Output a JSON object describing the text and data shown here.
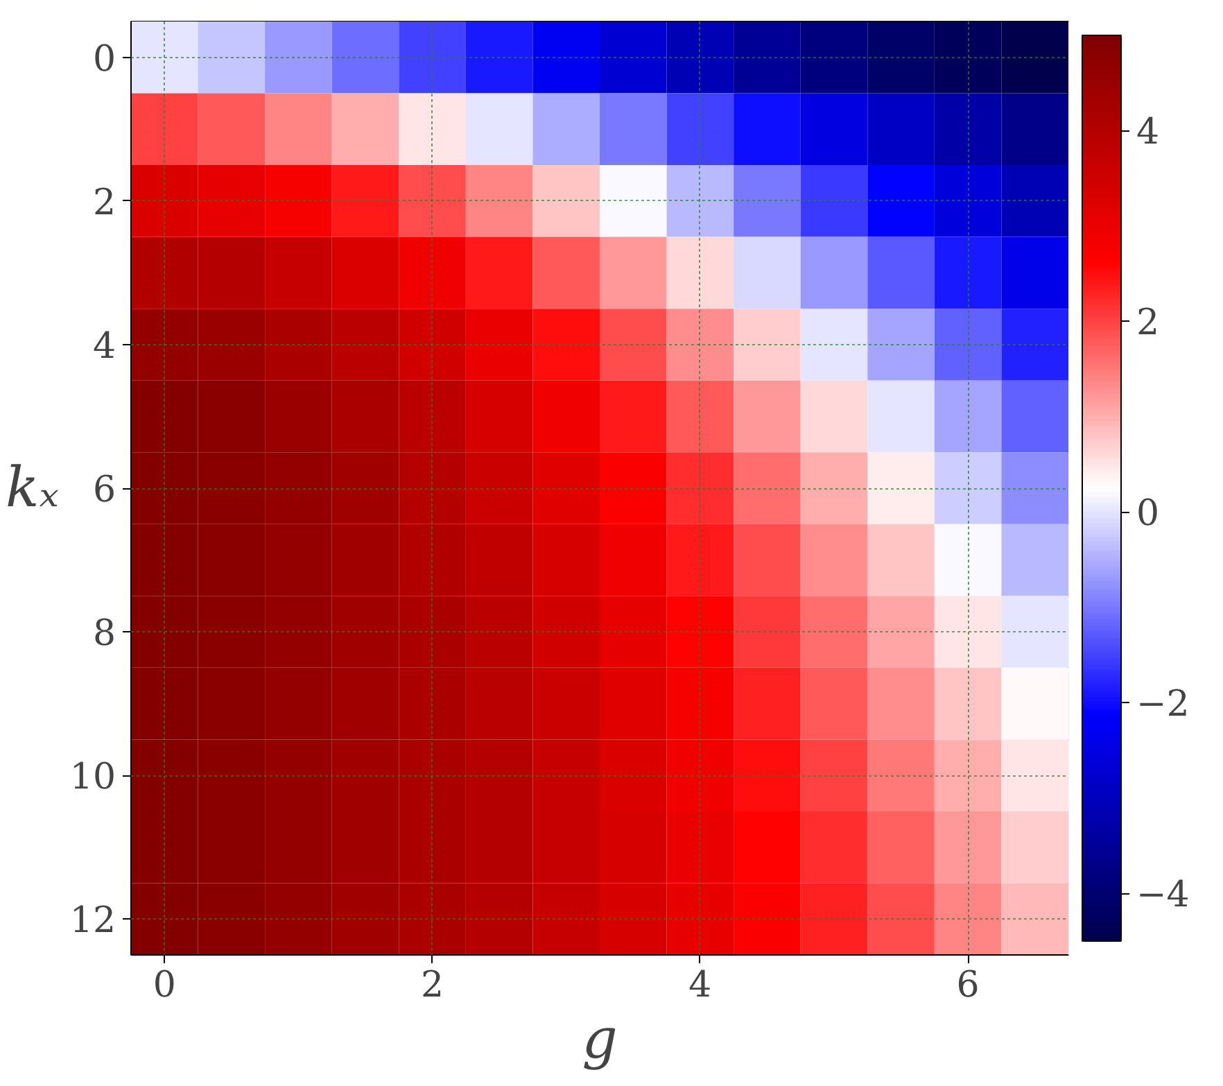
{
  "chart_data": {
    "type": "heatmap",
    "xlabel": "g",
    "ylabel": "kₓ",
    "categories": [
      "0",
      null,
      null,
      null,
      "2",
      null,
      null,
      null,
      "4",
      null,
      null,
      null,
      "6",
      null
    ],
    "y_categories": [
      "0",
      null,
      "2",
      null,
      "4",
      null,
      "6",
      null,
      "8",
      null,
      "10",
      null,
      "12"
    ],
    "cells": [
      [
        0.0,
        -0.3,
        -0.7,
        -1.1,
        -1.5,
        -1.9,
        -2.3,
        -2.7,
        -3.1,
        -3.5,
        -3.8,
        -4.1,
        -4.3,
        -4.5
      ],
      [
        2.0,
        1.8,
        1.4,
        1.0,
        0.5,
        0.0,
        -0.5,
        -1.0,
        -1.5,
        -2.0,
        -2.5,
        -2.9,
        -3.3,
        -3.7
      ],
      [
        3.3,
        3.1,
        2.8,
        2.4,
        1.9,
        1.4,
        0.8,
        0.2,
        -0.4,
        -1.0,
        -1.6,
        -2.1,
        -2.6,
        -3.1
      ],
      [
        4.1,
        4.0,
        3.7,
        3.3,
        2.9,
        2.4,
        1.8,
        1.2,
        0.6,
        -0.1,
        -0.7,
        -1.3,
        -1.9,
        -2.4
      ],
      [
        4.6,
        4.5,
        4.2,
        3.9,
        3.5,
        3.0,
        2.5,
        1.9,
        1.3,
        0.7,
        0.0,
        -0.6,
        -1.2,
        -1.8
      ],
      [
        4.9,
        4.8,
        4.5,
        4.2,
        3.9,
        3.4,
        2.9,
        2.4,
        1.8,
        1.2,
        0.6,
        0.0,
        -0.6,
        -1.2
      ],
      [
        4.9,
        4.8,
        4.6,
        4.4,
        4.0,
        3.6,
        3.2,
        2.7,
        2.2,
        1.6,
        1.0,
        0.4,
        -0.2,
        -0.8
      ],
      [
        4.9,
        4.8,
        4.6,
        4.4,
        4.1,
        3.8,
        3.4,
        2.9,
        2.4,
        1.9,
        1.3,
        0.8,
        0.2,
        -0.4
      ],
      [
        4.9,
        4.8,
        4.6,
        4.4,
        4.2,
        3.9,
        3.5,
        3.1,
        2.6,
        2.1,
        1.6,
        1.1,
        0.5,
        0.0
      ],
      [
        4.9,
        4.8,
        4.6,
        4.4,
        4.2,
        3.9,
        3.6,
        3.2,
        2.8,
        2.3,
        1.8,
        1.3,
        0.8,
        0.3
      ],
      [
        4.9,
        4.8,
        4.6,
        4.4,
        4.2,
        4.0,
        3.7,
        3.3,
        2.9,
        2.5,
        2.0,
        1.5,
        1.0,
        0.5
      ],
      [
        4.9,
        4.8,
        4.6,
        4.4,
        4.2,
        4.0,
        3.7,
        3.4,
        3.0,
        2.6,
        2.2,
        1.7,
        1.2,
        0.7
      ],
      [
        4.9,
        4.8,
        4.6,
        4.4,
        4.2,
        4.0,
        3.7,
        3.4,
        3.1,
        2.7,
        2.3,
        1.9,
        1.4,
        0.9
      ]
    ],
    "clim": [
      -4.5,
      5
    ],
    "cticks": [
      {
        "value": -4,
        "label": "−4"
      },
      {
        "value": -2,
        "label": "−2"
      },
      0,
      2,
      4
    ],
    "grid": true
  }
}
